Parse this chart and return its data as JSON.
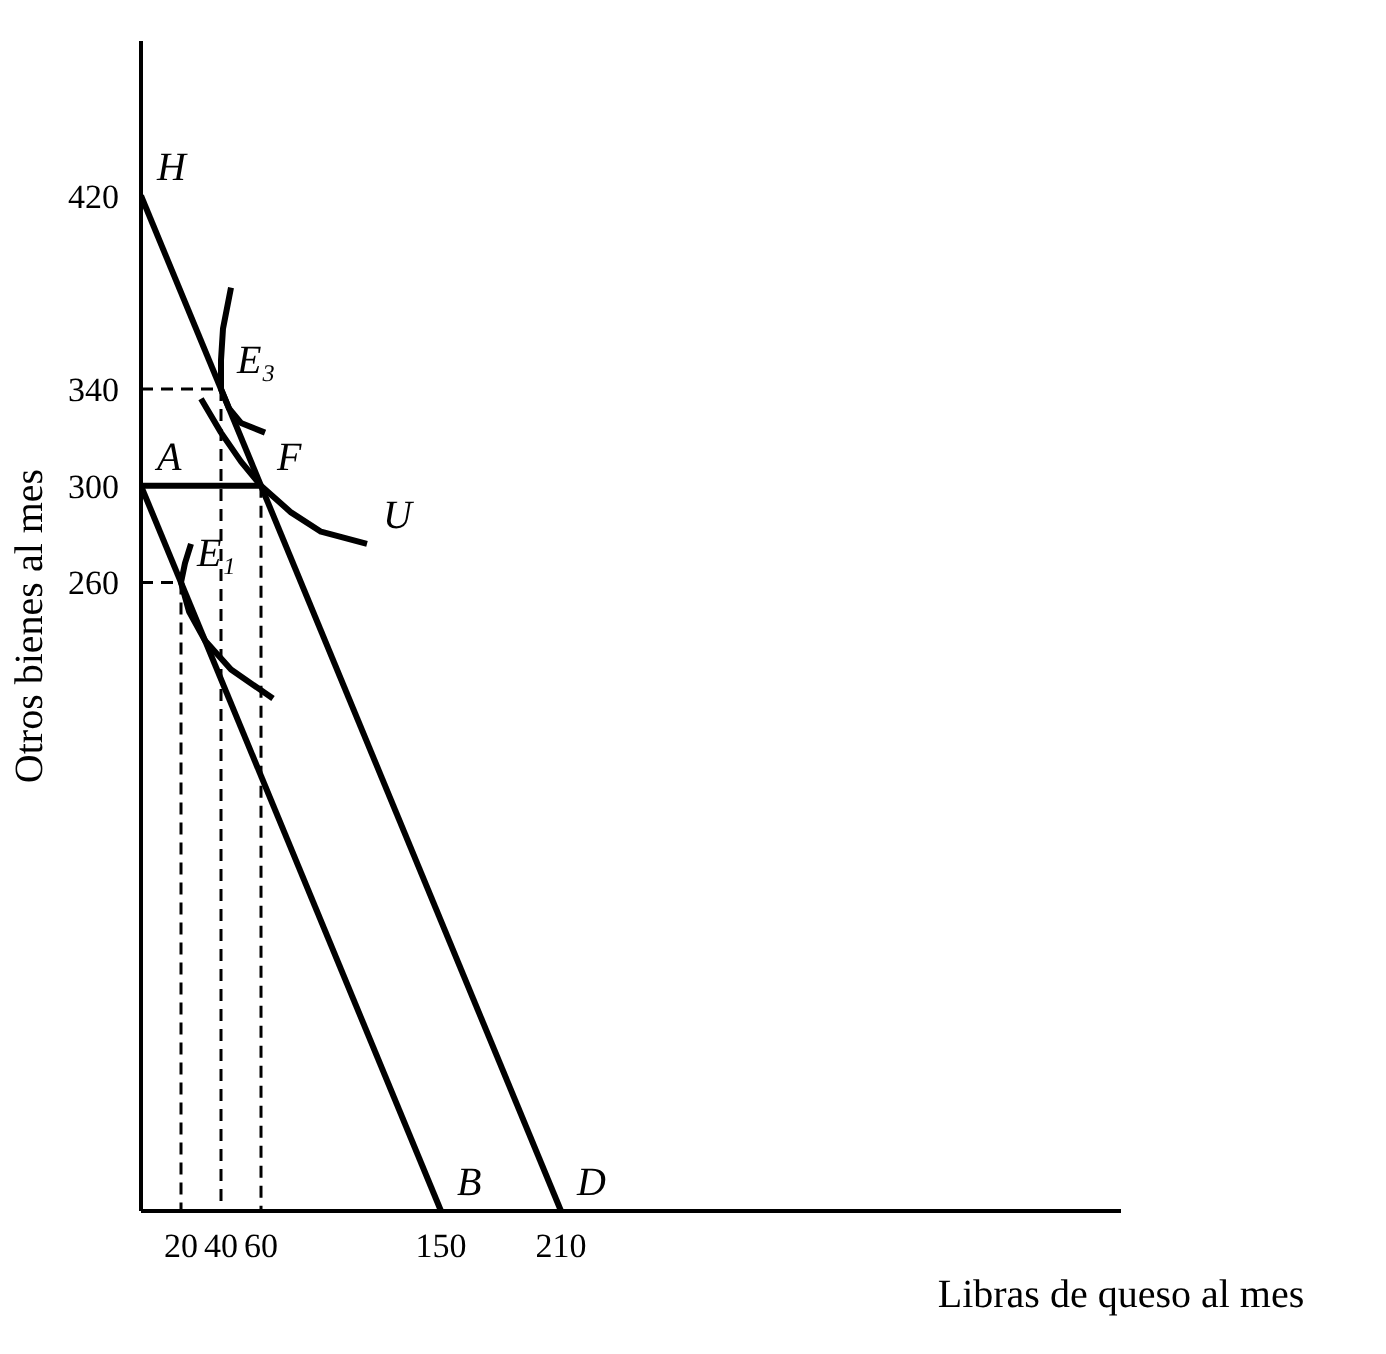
{
  "chart_data": {
    "type": "line",
    "xlabel": "Libras de queso al mes",
    "ylabel": "Otros bienes al mes",
    "xlim": [
      0,
      490
    ],
    "ylim": [
      0,
      484
    ],
    "xticks": [
      20,
      40,
      60,
      150,
      210
    ],
    "yticks": [
      260,
      300,
      340,
      420
    ],
    "series": [
      {
        "color": "#000000",
        "x": [
          0,
          150
        ],
        "values": [
          300,
          0
        ]
      },
      {
        "color": "#000000",
        "x": [
          0,
          210
        ],
        "values": [
          420,
          0
        ]
      },
      {
        "color": "#000000",
        "x": [
          0,
          60
        ],
        "values": [
          300,
          300
        ]
      },
      {
        "color": "#000000",
        "x": [
          30,
          40,
          50,
          60,
          75,
          90,
          113
        ],
        "values": [
          336,
          322,
          310,
          300,
          289,
          281,
          276
        ]
      },
      {
        "color": "#000000",
        "x": [
          45,
          41,
          40,
          40,
          44,
          50,
          62
        ],
        "values": [
          382,
          365,
          352,
          340,
          332,
          326,
          322
        ]
      },
      {
        "color": "#000000",
        "x": [
          25,
          22,
          20,
          24,
          32,
          45,
          66
        ],
        "values": [
          276,
          268,
          260,
          248,
          236,
          224,
          212
        ]
      },
      {
        "color": "#000000",
        "line_style": "dashed",
        "x": [
          0,
          40,
          40
        ],
        "values": [
          340,
          340,
          0
        ]
      },
      {
        "color": "#000000",
        "line_style": "dashed",
        "x": [
          0,
          20,
          20
        ],
        "values": [
          260,
          260,
          0
        ]
      },
      {
        "color": "#000000",
        "line_style": "dashed",
        "x": [
          60,
          60
        ],
        "values": [
          300,
          0
        ]
      }
    ],
    "annotations": [
      {
        "text": "H",
        "x": 0,
        "y": 420
      },
      {
        "text": "A",
        "x": 0,
        "y": 300
      },
      {
        "text": "F",
        "x": 60,
        "y": 300
      },
      {
        "text": "E₃",
        "x": 40,
        "y": 340
      },
      {
        "text": "E₁",
        "x": 20,
        "y": 260
      },
      {
        "text": "U",
        "x": 113,
        "y": 276
      },
      {
        "text": "B",
        "x": 150,
        "y": 0
      },
      {
        "text": "D",
        "x": 210,
        "y": 0
      }
    ]
  }
}
